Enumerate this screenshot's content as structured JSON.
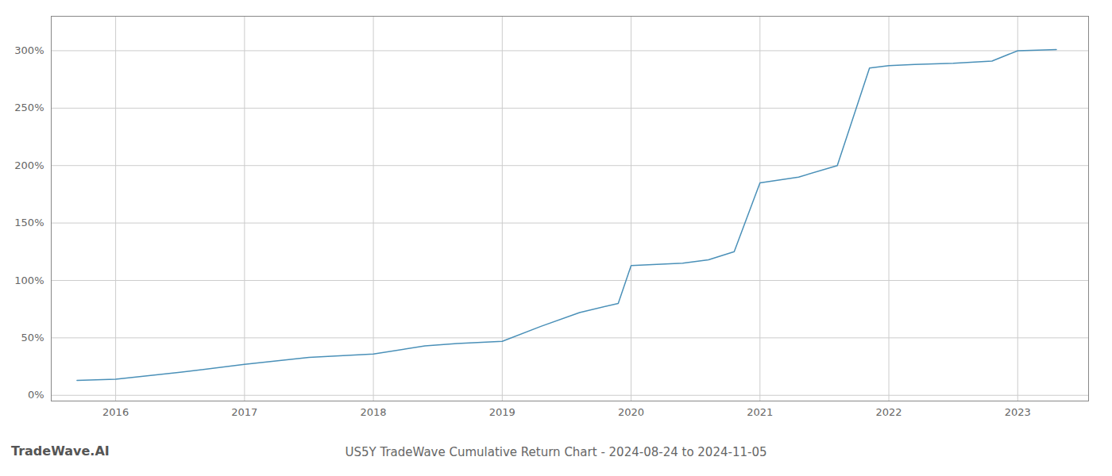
{
  "chart_data": {
    "type": "line",
    "title": "US5Y TradeWave Cumulative Return Chart - 2024-08-24 to 2024-11-05",
    "annotations": [
      "TradeWave.AI"
    ],
    "x": [
      2015.7,
      2016.0,
      2016.5,
      2017.0,
      2017.5,
      2018.0,
      2018.4,
      2018.65,
      2019.0,
      2019.3,
      2019.6,
      2019.9,
      2020.0,
      2020.2,
      2020.4,
      2020.6,
      2020.8,
      2021.0,
      2021.3,
      2021.6,
      2021.85,
      2022.0,
      2022.2,
      2022.5,
      2022.8,
      2023.0,
      2023.3
    ],
    "values": [
      13,
      14,
      20,
      27,
      33,
      36,
      43,
      45,
      47,
      60,
      72,
      80,
      113,
      114,
      115,
      118,
      125,
      185,
      190,
      200,
      285,
      287,
      288,
      289,
      291,
      300,
      301
    ],
    "color": "#4a90b8",
    "xlim": [
      2015.5,
      2023.55
    ],
    "ylim": [
      -5,
      330
    ],
    "xticks": [
      2016,
      2017,
      2018,
      2019,
      2020,
      2021,
      2022,
      2023
    ],
    "yticks": [
      {
        "value": 0,
        "label": "0%"
      },
      {
        "value": 50,
        "label": "50%"
      },
      {
        "value": 100,
        "label": "100%"
      },
      {
        "value": 150,
        "label": "150%"
      },
      {
        "value": 200,
        "label": "200%"
      },
      {
        "value": 250,
        "label": "250%"
      },
      {
        "value": 300,
        "label": "300%"
      }
    ],
    "grid": true
  }
}
